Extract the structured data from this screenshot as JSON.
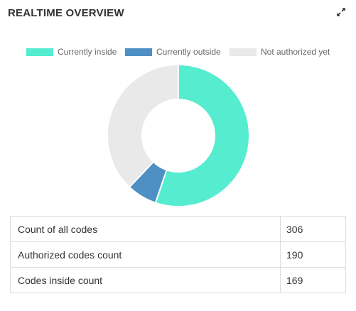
{
  "widget": {
    "title": "REALTIME OVERVIEW",
    "expand_icon": "expand-icon"
  },
  "chart_data": {
    "type": "pie",
    "subtype": "doughnut",
    "categories": [
      "Currently inside",
      "Currently outside",
      "Not authorized yet"
    ],
    "values": [
      169,
      21,
      116
    ],
    "colors": [
      "#55ecd0",
      "#4e8fc4",
      "#e9e9e9"
    ],
    "legend_position": "top"
  },
  "stats": {
    "rows": [
      {
        "label": "Count of all codes",
        "value": "306"
      },
      {
        "label": "Authorized codes count",
        "value": "190"
      },
      {
        "label": "Codes inside count",
        "value": "169"
      }
    ]
  }
}
